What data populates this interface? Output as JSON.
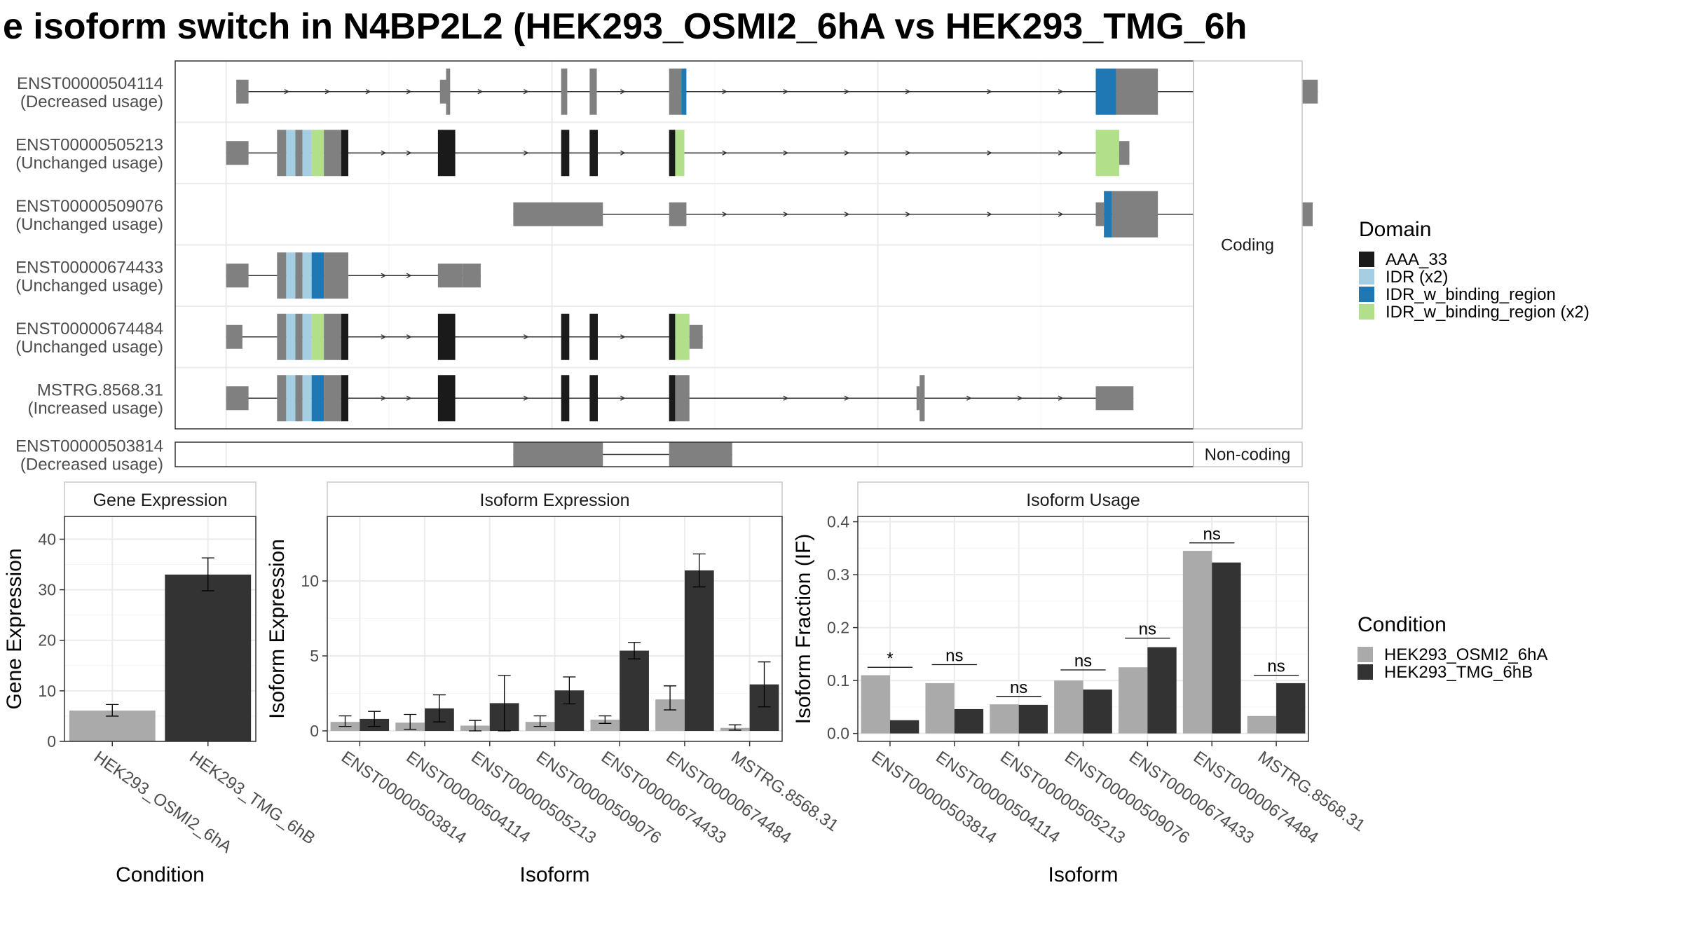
{
  "title": "e isoform switch in N4BP2L2 (HEK293_OSMI2_6hA vs HEK293_TMG_6h",
  "colors": {
    "exon": "#808080",
    "AAA_33": "#1a1a1a",
    "IDR": "#a6cee3",
    "IDR_w_binding_region": "#1f78b4",
    "IDR_w_binding_region_x2": "#b2df8a",
    "cond1": "#aaaaaa",
    "cond2": "#333333"
  },
  "structure": {
    "coding_label": "Coding",
    "noncoding_label": "Non-coding",
    "axis_range": [
      0,
      1000
    ],
    "transcripts": [
      {
        "id": "ENST00000504114",
        "usage": "(Decreased usage)",
        "exons": [
          [
            60,
            72,
            "t"
          ],
          [
            260,
            266,
            "t"
          ],
          [
            266,
            270,
            "c"
          ],
          [
            379,
            385,
            "c"
          ],
          [
            407,
            414,
            "c"
          ],
          [
            485,
            497,
            "c"
          ],
          [
            497,
            502,
            "IDR_w_binding_region"
          ],
          [
            904,
            924,
            "IDR_w_binding_region"
          ],
          [
            924,
            965,
            "c"
          ],
          [
            1009,
            1016,
            "c"
          ],
          [
            1054,
            1058,
            "c"
          ],
          [
            1058,
            1060,
            "t"
          ],
          [
            1107,
            1122,
            "t"
          ]
        ],
        "arrows": [
          110,
          150,
          190,
          230,
          300,
          345,
          440,
          540,
          600,
          660,
          720,
          800,
          870,
          960,
          1030,
          1080
        ]
      },
      {
        "id": "ENST00000505213",
        "usage": "(Unchanged usage)",
        "exons": [
          [
            50,
            72,
            "t"
          ],
          [
            100,
            109,
            "c"
          ],
          [
            109,
            118,
            "IDR"
          ],
          [
            118,
            125,
            "c"
          ],
          [
            125,
            134,
            "IDR"
          ],
          [
            134,
            146,
            "IDR_w_binding_region_x2"
          ],
          [
            146,
            163,
            "c"
          ],
          [
            163,
            170,
            "AAA_33"
          ],
          [
            258,
            275,
            "AAA_33"
          ],
          [
            379,
            387,
            "AAA_33"
          ],
          [
            407,
            415,
            "AAA_33"
          ],
          [
            485,
            491,
            "AAA_33"
          ],
          [
            491,
            500,
            "IDR_w_binding_region_x2"
          ],
          [
            904,
            927,
            "IDR_w_binding_region_x2"
          ],
          [
            927,
            937,
            "t"
          ]
        ],
        "arrows": [
          205,
          230,
          345,
          440,
          540,
          600,
          660,
          720,
          800,
          870
        ]
      },
      {
        "id": "ENST00000509076",
        "usage": "(Unchanged usage)",
        "exons": [
          [
            332,
            420,
            "t"
          ],
          [
            485,
            502,
            "t"
          ],
          [
            904,
            912,
            "t"
          ],
          [
            912,
            920,
            "IDR_w_binding_region"
          ],
          [
            920,
            965,
            "c"
          ],
          [
            1009,
            1016,
            "c"
          ],
          [
            1054,
            1058,
            "c"
          ],
          [
            1058,
            1060,
            "t"
          ],
          [
            1107,
            1117,
            "t"
          ]
        ],
        "arrows": [
          540,
          600,
          660,
          720,
          800,
          870,
          960,
          1030,
          1080
        ]
      },
      {
        "id": "ENST00000674433",
        "usage": "(Unchanged usage)",
        "exons": [
          [
            50,
            72,
            "t"
          ],
          [
            100,
            109,
            "c"
          ],
          [
            109,
            118,
            "IDR"
          ],
          [
            118,
            125,
            "c"
          ],
          [
            125,
            134,
            "IDR"
          ],
          [
            134,
            146,
            "IDR_w_binding_region"
          ],
          [
            146,
            170,
            "c"
          ],
          [
            258,
            282,
            "t"
          ],
          [
            282,
            300,
            "t"
          ]
        ],
        "arrows": [
          205,
          230
        ]
      },
      {
        "id": "ENST00000674484",
        "usage": "(Unchanged usage)",
        "exons": [
          [
            50,
            66,
            "t"
          ],
          [
            100,
            109,
            "c"
          ],
          [
            109,
            118,
            "IDR"
          ],
          [
            118,
            125,
            "c"
          ],
          [
            125,
            134,
            "IDR"
          ],
          [
            134,
            146,
            "IDR_w_binding_region_x2"
          ],
          [
            146,
            163,
            "c"
          ],
          [
            163,
            170,
            "AAA_33"
          ],
          [
            258,
            275,
            "AAA_33"
          ],
          [
            379,
            387,
            "AAA_33"
          ],
          [
            407,
            415,
            "AAA_33"
          ],
          [
            485,
            491,
            "AAA_33"
          ],
          [
            491,
            505,
            "IDR_w_binding_region_x2"
          ],
          [
            505,
            518,
            "t"
          ]
        ],
        "arrows": [
          205,
          230,
          345,
          440
        ]
      },
      {
        "id": "MSTRG.8568.31",
        "usage": "(Increased usage)",
        "exons": [
          [
            50,
            72,
            "t"
          ],
          [
            100,
            109,
            "c"
          ],
          [
            109,
            118,
            "IDR"
          ],
          [
            118,
            125,
            "c"
          ],
          [
            125,
            134,
            "IDR"
          ],
          [
            134,
            146,
            "IDR_w_binding_region"
          ],
          [
            146,
            163,
            "c"
          ],
          [
            163,
            170,
            "AAA_33"
          ],
          [
            258,
            275,
            "AAA_33"
          ],
          [
            379,
            387,
            "AAA_33"
          ],
          [
            407,
            415,
            "AAA_33"
          ],
          [
            485,
            491,
            "AAA_33"
          ],
          [
            491,
            505,
            "c"
          ],
          [
            728,
            731,
            "t"
          ],
          [
            731,
            736,
            "c"
          ],
          [
            904,
            941,
            "t"
          ]
        ],
        "arrows": [
          205,
          230,
          345,
          440,
          600,
          660,
          780,
          830,
          870
        ]
      }
    ],
    "noncoding": [
      {
        "id": "ENST00000503814",
        "usage": "(Decreased usage)",
        "exons": [
          [
            332,
            420,
            "t"
          ],
          [
            485,
            547,
            "t"
          ]
        ],
        "arrows": []
      }
    ]
  },
  "legends": {
    "domain": {
      "title": "Domain",
      "items": [
        {
          "label": "AAA_33",
          "color_key": "AAA_33"
        },
        {
          "label": "IDR (x2)",
          "color_key": "IDR"
        },
        {
          "label": "IDR_w_binding_region",
          "color_key": "IDR_w_binding_region"
        },
        {
          "label": "IDR_w_binding_region (x2)",
          "color_key": "IDR_w_binding_region_x2"
        }
      ]
    },
    "condition": {
      "title": "Condition",
      "items": [
        {
          "label": "HEK293_OSMI2_6hA",
          "color_key": "cond1"
        },
        {
          "label": "HEK293_TMG_6hB",
          "color_key": "cond2"
        }
      ]
    }
  },
  "chart_data": [
    {
      "type": "bar",
      "title": "Gene Expression",
      "xlabel": "Condition",
      "ylabel": "Gene Expression",
      "ylim": [
        0,
        44.5
      ],
      "yticks": [
        0,
        10,
        20,
        30,
        40
      ],
      "categories": [
        "HEK293_OSMI2_6hA",
        "HEK293_TMG_6hB"
      ],
      "values": [
        6.1,
        33.0
      ],
      "errors": [
        [
          5.0,
          7.3
        ],
        [
          29.8,
          36.3
        ]
      ]
    },
    {
      "type": "bar",
      "title": "Isoform Expression",
      "xlabel": "Isoform",
      "ylabel": "Isoform Expression",
      "ylim": [
        -0.7,
        14.3
      ],
      "yticks": [
        0,
        5,
        10
      ],
      "categories": [
        "ENST00000503814",
        "ENST00000504114",
        "ENST00000505213",
        "ENST00000509076",
        "ENST00000674433",
        "ENST00000674484",
        "MSTRG.8568.31"
      ],
      "series": [
        {
          "name": "HEK293_OSMI2_6hA",
          "values": [
            0.6,
            0.55,
            0.35,
            0.6,
            0.75,
            2.1,
            0.2
          ],
          "errors": [
            [
              0.3,
              1.0
            ],
            [
              0.1,
              1.1
            ],
            [
              0.0,
              0.7
            ],
            [
              0.3,
              1.0
            ],
            [
              0.5,
              1.0
            ],
            [
              1.4,
              3.0
            ],
            [
              0.05,
              0.4
            ]
          ]
        },
        {
          "name": "HEK293_TMG_6hB",
          "values": [
            0.8,
            1.5,
            1.85,
            2.7,
            5.35,
            10.7,
            3.1
          ],
          "errors": [
            [
              0.3,
              1.3
            ],
            [
              0.6,
              2.4
            ],
            [
              0.0,
              3.7
            ],
            [
              1.8,
              3.6
            ],
            [
              4.8,
              5.9
            ],
            [
              9.6,
              11.8
            ],
            [
              1.6,
              4.6
            ]
          ]
        }
      ]
    },
    {
      "type": "bar",
      "title": "Isoform Usage",
      "xlabel": "Isoform",
      "ylabel": "Isoform Fraction (IF)",
      "ylim": [
        -0.015,
        0.41
      ],
      "yticks": [
        0.0,
        0.1,
        0.2,
        0.3,
        0.4
      ],
      "ytick_labels": [
        "0.0",
        "0.1",
        "0.2",
        "0.3",
        "0.4"
      ],
      "categories": [
        "ENST00000503814",
        "ENST00000504114",
        "ENST00000505213",
        "ENST00000509076",
        "ENST00000674433",
        "ENST00000674484",
        "MSTRG.8568.31"
      ],
      "series": [
        {
          "name": "HEK293_OSMI2_6hA",
          "values": [
            0.11,
            0.095,
            0.055,
            0.1,
            0.125,
            0.345,
            0.033
          ]
        },
        {
          "name": "HEK293_TMG_6hB",
          "values": [
            0.025,
            0.046,
            0.054,
            0.083,
            0.163,
            0.323,
            0.095
          ]
        }
      ],
      "significance": [
        "*",
        "ns",
        "ns",
        "ns",
        "ns",
        "ns",
        "ns"
      ],
      "sig_level": [
        0.125,
        0.13,
        0.07,
        0.12,
        0.18,
        0.36,
        0.11
      ]
    }
  ]
}
